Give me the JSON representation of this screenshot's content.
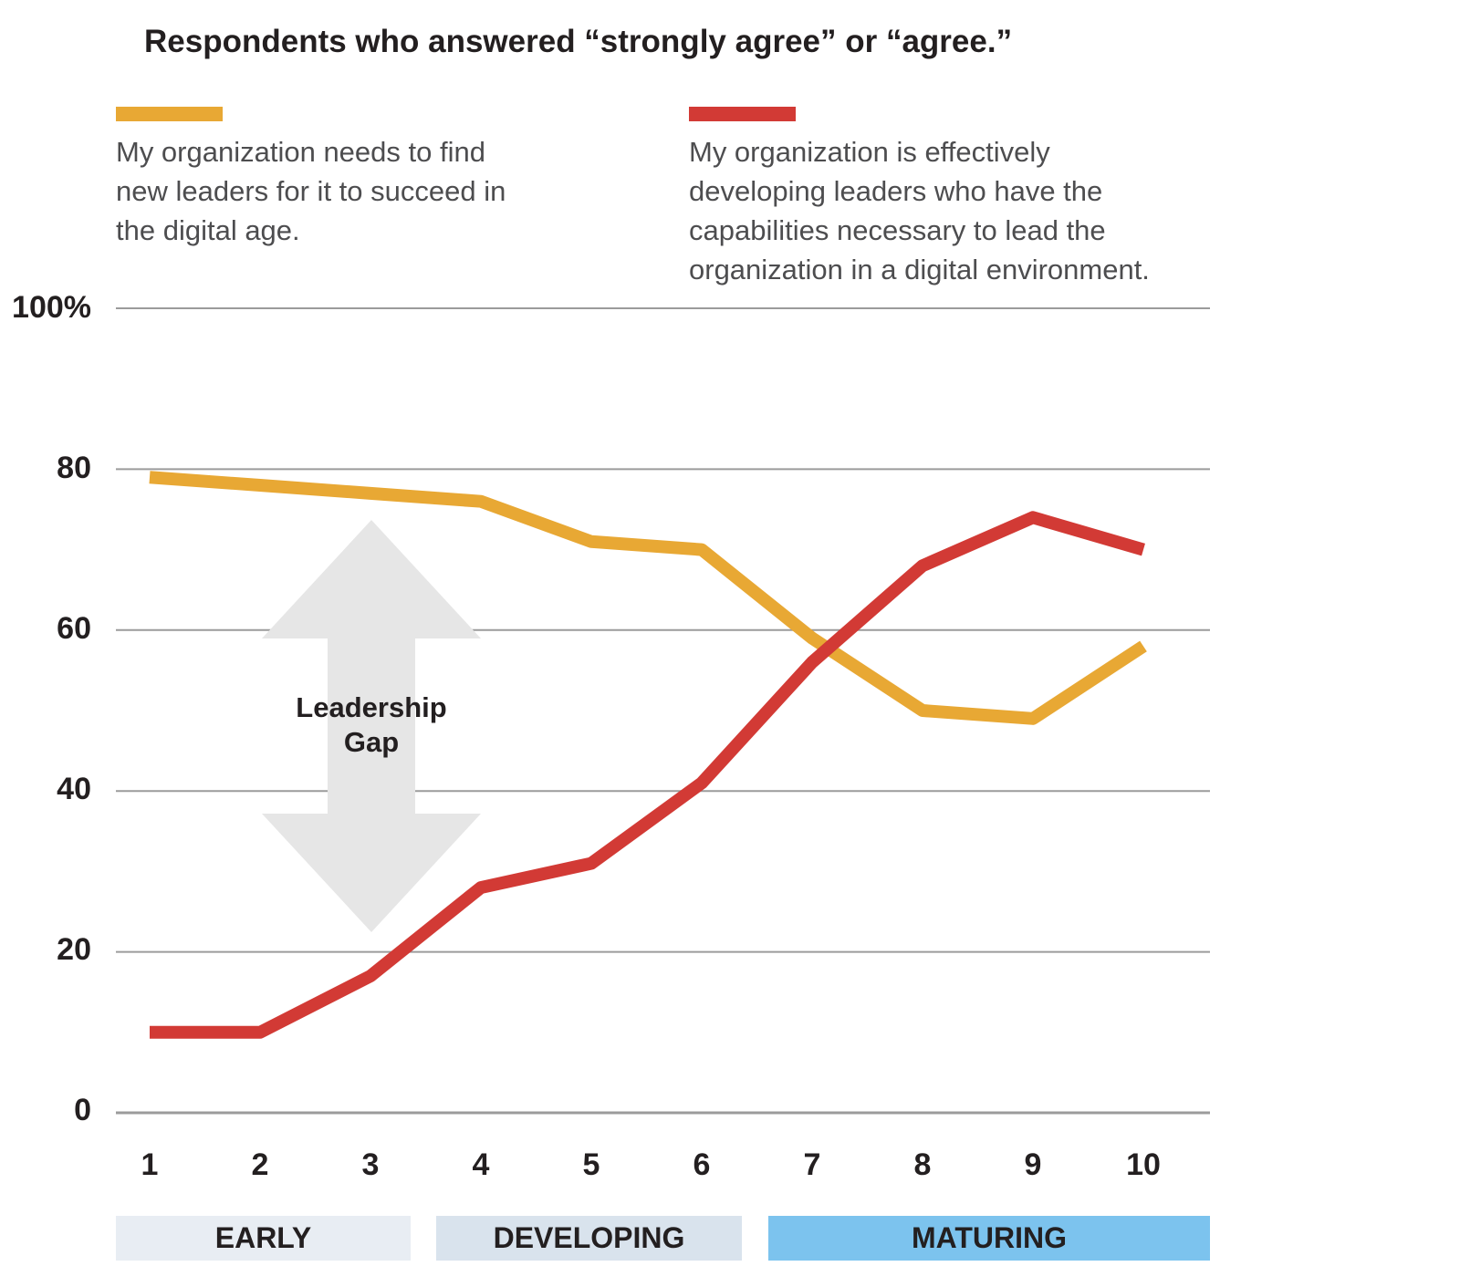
{
  "chart_data": {
    "type": "line",
    "title": "Respondents who answered “strongly agree” or “agree.”",
    "x": [
      1,
      2,
      3,
      4,
      5,
      6,
      7,
      8,
      9,
      10
    ],
    "x_tick_labels": [
      "1",
      "2",
      "3",
      "4",
      "5",
      "6",
      "7",
      "8",
      "9",
      "10"
    ],
    "y_tick_labels": [
      "100%",
      "80",
      "60",
      "40",
      "20",
      "0"
    ],
    "y_ticks": [
      100,
      80,
      60,
      40,
      20,
      0
    ],
    "ylim": [
      0,
      100
    ],
    "grid": true,
    "series": [
      {
        "name": "My organization needs to find new leaders for it to succeed in the digital age.",
        "color": "#e8a834",
        "values": [
          79,
          78,
          77,
          76,
          71,
          70,
          59,
          50,
          49,
          58
        ]
      },
      {
        "name": "My organization is effectively developing leaders who have the capabilities necessary to lead the organization in a digital environment.",
        "color": "#d23a35",
        "values": [
          10,
          10,
          17,
          28,
          31,
          41,
          56,
          68,
          74,
          70
        ]
      }
    ],
    "annotation": {
      "label": "Leadership Gap",
      "line1": "Leadership",
      "line2": "Gap",
      "color": "#e6e6e6"
    },
    "phases": [
      {
        "label": "EARLY",
        "color": "#e8edf3"
      },
      {
        "label": "DEVELOPING",
        "color": "#d9e3ed"
      },
      {
        "label": "MATURING",
        "color": "#7cc3ee"
      }
    ]
  }
}
